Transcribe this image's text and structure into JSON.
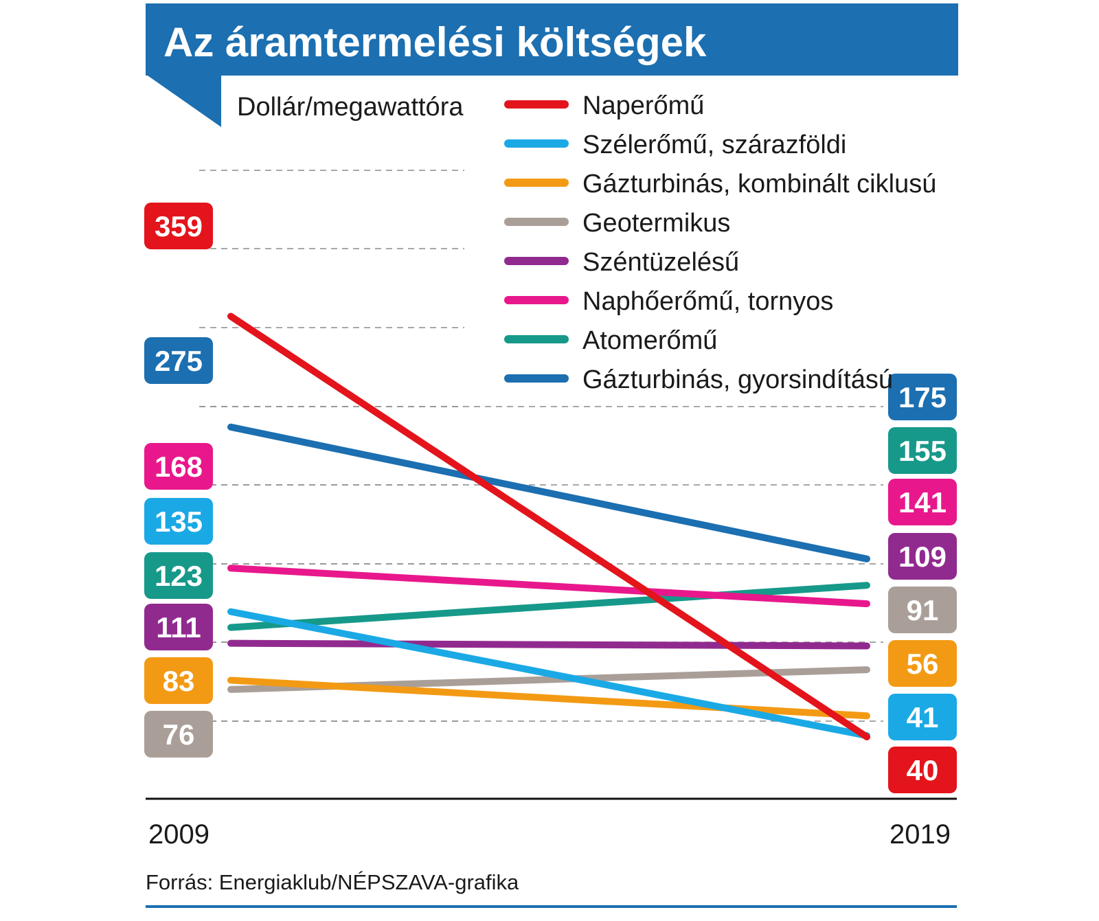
{
  "title": "Az áramtermelési költségek",
  "source": "Forrás: Energiaklub/NÉPSZAVA-grafika",
  "chart_data": {
    "type": "line",
    "title": "Az áramtermelési költségek",
    "unit": "Dollár/megawattóra",
    "x": [
      "2009",
      "2019"
    ],
    "ylim": [
      0,
      400
    ],
    "grid": true,
    "legend_position": "top-right",
    "series": [
      {
        "name": "Naperőmű",
        "color": "#e3141b",
        "values": [
          359,
          40
        ]
      },
      {
        "name": "Szélerőmű, szárazföldi",
        "color": "#1ba9e6",
        "values": [
          135,
          41
        ]
      },
      {
        "name": "Gázturbinás, kombinált ciklusú",
        "color": "#f39a14",
        "values": [
          83,
          56
        ]
      },
      {
        "name": "Geotermikus",
        "color": "#aa9f98",
        "values": [
          76,
          91
        ]
      },
      {
        "name": "Széntüzelésű",
        "color": "#912a8f",
        "values": [
          111,
          109
        ]
      },
      {
        "name": "Naphőerőmű, tornyos",
        "color": "#e8188c",
        "values": [
          168,
          141
        ]
      },
      {
        "name": "Atomerőmű",
        "color": "#17998a",
        "values": [
          123,
          155
        ]
      },
      {
        "name": "Gázturbinás, gyorsindítású",
        "color": "#1c6fb0",
        "values": [
          275,
          175
        ]
      }
    ]
  },
  "colors": {
    "header": "#1c6fb0",
    "axis": "#111111",
    "grid": "#8a8a8a",
    "footer_rule": "#1c6fb0"
  }
}
